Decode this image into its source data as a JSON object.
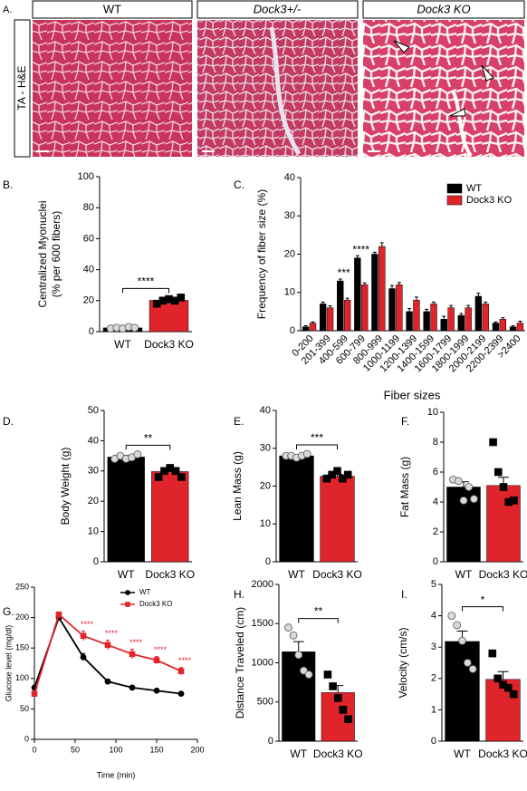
{
  "panel_a": {
    "label": "A.",
    "headers": [
      "WT",
      "Dock3+/-",
      "Dock3 KO"
    ],
    "side_label": "TA - H&E"
  },
  "chart_data": [
    {
      "type": "bar",
      "panel_label": "B.",
      "y_label": [
        "Centralized Myonuclei",
        "(% per 600 fibers)"
      ],
      "categories": [
        "WT",
        "Dock3 KO"
      ],
      "values": [
        2.4,
        20.2
      ],
      "errors": [
        0.4,
        1.2
      ],
      "colors": [
        "#000000",
        "#e0242b"
      ],
      "points": [
        [
          2,
          2.5,
          2,
          3,
          2.5
        ],
        [
          18,
          20,
          21,
          20,
          22
        ]
      ],
      "point_colors": [
        "#d9d9d9",
        "#000000"
      ],
      "point_markers": [
        "circle",
        "square"
      ],
      "ylim": [
        0,
        100
      ],
      "yticks": [
        0,
        20,
        40,
        60,
        80,
        100
      ],
      "significance": "****"
    },
    {
      "type": "bar",
      "panel_label": "C.",
      "y_label": "Frequency of fiber size (%)",
      "x_label": "Fiber sizes",
      "categories": [
        "0-200",
        "201-399",
        "400-599",
        "600-799",
        "800-999",
        "1000-1199",
        "1200-1399",
        "1400-1599",
        "1600-1799",
        "1800-1999",
        "2000-2199",
        "2200-2399",
        ">2400"
      ],
      "series": [
        {
          "name": "WT",
          "color": "#000000",
          "values": [
            1,
            7,
            13,
            19,
            20,
            11,
            5,
            5,
            3,
            4,
            9,
            2,
            1
          ],
          "errors": [
            0.3,
            0.5,
            0.5,
            0.6,
            0.5,
            0.8,
            0.8,
            0.6,
            0.8,
            0.5,
            0.8,
            0.3,
            0.3
          ]
        },
        {
          "name": "Dock3 KO",
          "color": "#e0242b",
          "values": [
            2,
            6,
            8,
            12,
            22,
            12,
            8,
            7,
            6,
            6,
            7,
            3,
            2
          ],
          "errors": [
            0.3,
            0.5,
            0.5,
            0.5,
            1,
            0.6,
            0.8,
            0.5,
            0.6,
            0.6,
            0.5,
            0.4,
            0.5
          ]
        }
      ],
      "annotations": [
        null,
        null,
        "***",
        "****",
        null,
        null,
        null,
        null,
        null,
        null,
        null,
        null,
        null
      ],
      "ylim": [
        0,
        40
      ],
      "yticks": [
        0,
        10,
        20,
        30,
        40
      ],
      "legend": "upper right"
    },
    {
      "type": "bar",
      "panel_label": "D.",
      "y_label": "Body  Weight (g)",
      "categories": [
        "WT",
        "Dock3 KO"
      ],
      "values": [
        34.6,
        29.8
      ],
      "errors": [
        0.5,
        0.8
      ],
      "colors": [
        "#000000",
        "#e0242b"
      ],
      "points": [
        [
          34,
          35,
          34,
          34.5,
          35.5
        ],
        [
          28,
          30,
          31,
          30,
          28
        ]
      ],
      "point_colors": [
        "#d9d9d9",
        "#000000"
      ],
      "point_markers": [
        "circle",
        "square"
      ],
      "ylim": [
        0,
        50
      ],
      "yticks": [
        0,
        10,
        20,
        30,
        40,
        50
      ],
      "significance": "**"
    },
    {
      "type": "bar",
      "panel_label": "E.",
      "y_label": "Lean Mass (g)",
      "categories": [
        "WT",
        "Dock3 KO"
      ],
      "values": [
        28,
        22.6
      ],
      "errors": [
        0.3,
        0.5
      ],
      "colors": [
        "#000000",
        "#e0242b"
      ],
      "points": [
        [
          28,
          28,
          27.5,
          28,
          28.5
        ],
        [
          22,
          23,
          24,
          22,
          23
        ]
      ],
      "point_colors": [
        "#d9d9d9",
        "#000000"
      ],
      "point_markers": [
        "circle",
        "square"
      ],
      "ylim": [
        0,
        40
      ],
      "yticks": [
        0,
        10,
        20,
        30,
        40
      ],
      "significance": "***"
    },
    {
      "type": "bar",
      "panel_label": "F.",
      "y_label": "Fat Mass (g)",
      "categories": [
        "WT",
        "Dock3 KO"
      ],
      "values": [
        5.0,
        5.1
      ],
      "errors": [
        0.35,
        0.55
      ],
      "colors": [
        "#000000",
        "#e0242b"
      ],
      "points": [
        [
          5.5,
          5.4,
          4.1,
          5.0,
          4.2
        ],
        [
          8,
          6,
          5,
          4,
          4.1
        ]
      ],
      "point_colors": [
        "#d9d9d9",
        "#000000"
      ],
      "point_markers": [
        "circle",
        "square"
      ],
      "ylim": [
        0,
        10
      ],
      "yticks": [
        0,
        2,
        4,
        6,
        8,
        10
      ]
    },
    {
      "type": "line",
      "panel_label": "G.",
      "y_label": "Glucose level (mg/dl)",
      "x_label": "Time (min)",
      "x": [
        0,
        30,
        60,
        90,
        120,
        150,
        180
      ],
      "series": [
        {
          "name": "WT",
          "color": "#000000",
          "marker": "circle",
          "values": [
            85,
            200,
            135,
            95,
            85,
            80,
            75
          ],
          "errors": [
            3,
            3,
            6,
            2,
            2,
            2,
            2
          ]
        },
        {
          "name": "Dock3 KO",
          "color": "#e0242b",
          "marker": "square",
          "values": [
            75,
            205,
            170,
            155,
            140,
            130,
            112
          ],
          "errors": [
            3,
            3,
            8,
            8,
            8,
            6,
            6
          ]
        }
      ],
      "annotations": [
        null,
        null,
        "****",
        "****",
        "****",
        "****",
        "****"
      ],
      "xlim": [
        0,
        200
      ],
      "xticks": [
        0,
        50,
        100,
        150,
        200
      ],
      "ylim": [
        0,
        250
      ],
      "yticks": [
        0,
        50,
        100,
        150,
        200,
        250
      ],
      "legend": "upper right"
    },
    {
      "type": "bar",
      "panel_label": "H.",
      "y_label": "Distance Traveled (cm)",
      "categories": [
        "WT",
        "Dock3 KO"
      ],
      "values": [
        1140,
        620
      ],
      "errors": [
        130,
        90
      ],
      "colors": [
        "#000000",
        "#e0242b"
      ],
      "points": [
        [
          1450,
          1350,
          1100,
          900,
          850
        ],
        [
          850,
          700,
          550,
          400,
          280
        ]
      ],
      "point_colors": [
        "#d9d9d9",
        "#000000"
      ],
      "point_markers": [
        "circle",
        "square"
      ],
      "ylim": [
        0,
        2000
      ],
      "yticks": [
        0,
        500,
        1000,
        1500,
        2000
      ],
      "significance": "**"
    },
    {
      "type": "bar",
      "panel_label": "I.",
      "y_label": "Velocity (cm/s)",
      "categories": [
        "WT",
        "Dock3 KO"
      ],
      "values": [
        3.18,
        1.97
      ],
      "errors": [
        0.33,
        0.25
      ],
      "colors": [
        "#000000",
        "#e0242b"
      ],
      "points": [
        [
          4.0,
          3.7,
          3.2,
          2.5,
          2.3
        ],
        [
          2.8,
          2.0,
          1.8,
          1.7,
          1.5
        ]
      ],
      "point_colors": [
        "#d9d9d9",
        "#000000"
      ],
      "point_markers": [
        "circle",
        "square"
      ],
      "ylim": [
        0,
        5
      ],
      "yticks": [
        0,
        1,
        2,
        3,
        4,
        5
      ],
      "significance": "*"
    }
  ]
}
